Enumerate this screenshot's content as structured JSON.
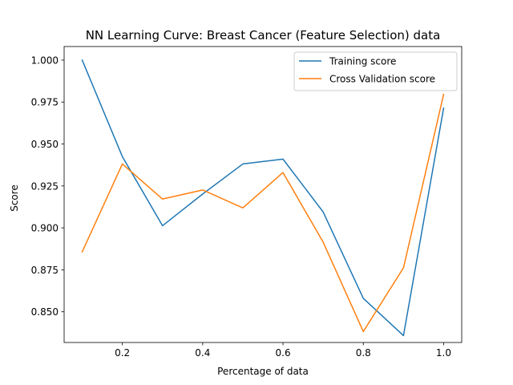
{
  "chart_data": {
    "type": "line",
    "title": "NN Learning Curve: Breast Cancer (Feature Selection) data",
    "xlabel": "Percentage of data",
    "ylabel": "Score",
    "xlim": [
      0.055,
      1.045
    ],
    "ylim": [
      0.8317,
      1.0081
    ],
    "x_ticks": [
      0.2,
      0.4,
      0.6,
      0.8,
      1.0
    ],
    "x_tick_labels": [
      "0.2",
      "0.4",
      "0.6",
      "0.8",
      "1.0"
    ],
    "y_ticks": [
      0.85,
      0.875,
      0.9,
      0.925,
      0.95,
      0.975,
      1.0
    ],
    "y_tick_labels": [
      "0.850",
      "0.875",
      "0.900",
      "0.925",
      "0.950",
      "0.975",
      "1.000"
    ],
    "grid": false,
    "legend_position": "top-right",
    "x": [
      0.1,
      0.2,
      0.3,
      0.4,
      0.5,
      0.6,
      0.7,
      0.8,
      0.9,
      1.0
    ],
    "series": [
      {
        "name": "Training score",
        "color": "#1f77b4",
        "values": [
          1.0,
          0.9425,
          0.9013,
          0.9202,
          0.9381,
          0.941,
          0.9095,
          0.858,
          0.8358,
          0.9714
        ]
      },
      {
        "name": "Cross Validation score",
        "color": "#ff7f0e",
        "values": [
          0.8857,
          0.9381,
          0.9172,
          0.9226,
          0.9119,
          0.933,
          0.8915,
          0.8382,
          0.8762,
          0.9796
        ]
      }
    ]
  }
}
